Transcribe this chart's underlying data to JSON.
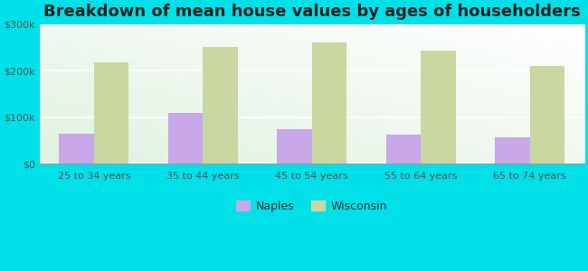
{
  "title": "Breakdown of mean house values by ages of householders",
  "categories": [
    "25 to 34 years",
    "35 to 44 years",
    "45 to 54 years",
    "55 to 64 years",
    "65 to 74 years"
  ],
  "naples_values": [
    65000,
    108000,
    73000,
    62000,
    57000
  ],
  "wisconsin_values": [
    218000,
    250000,
    260000,
    243000,
    210000
  ],
  "naples_color": "#c8a8e8",
  "wisconsin_color": "#c8d8a0",
  "bg_color_topleft": "#f0fdf0",
  "bg_color_bottomright": "#ffffff",
  "outer_background": "#00e0e8",
  "ylim": [
    0,
    300000
  ],
  "yticks": [
    0,
    100000,
    200000,
    300000
  ],
  "ytick_labels": [
    "$0",
    "$100k",
    "$200k",
    "$300k"
  ],
  "title_fontsize": 13,
  "tick_fontsize": 8,
  "legend_labels": [
    "Naples",
    "Wisconsin"
  ],
  "bar_width": 0.32
}
